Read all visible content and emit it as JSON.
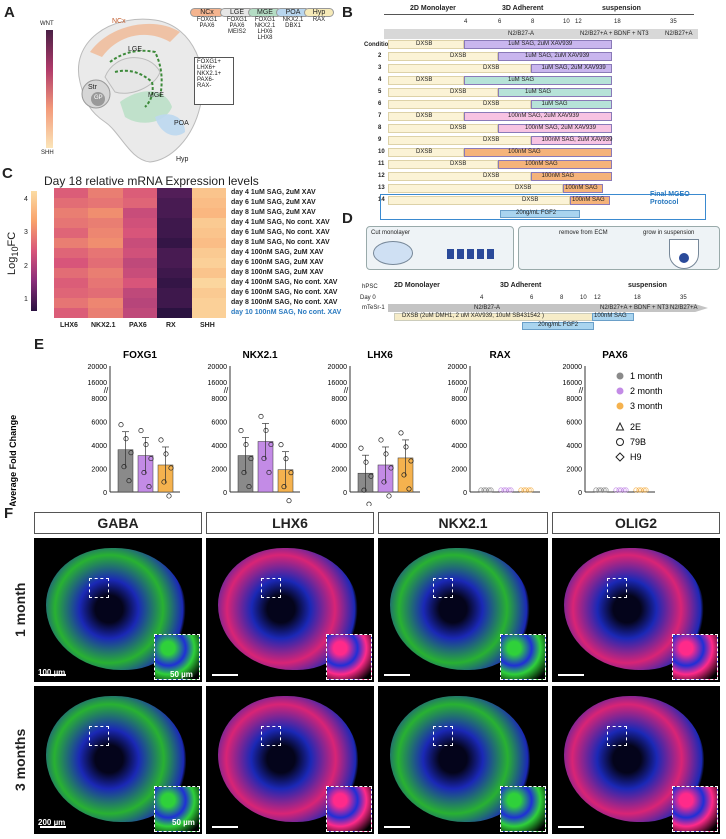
{
  "panel_labels": {
    "a": "A",
    "b": "B",
    "c": "C",
    "d": "D",
    "e": "E",
    "f": "F"
  },
  "colors": {
    "green": "#2fd13a",
    "blue": "#1f2fd6",
    "magenta": "#ff2a8a",
    "lavender": "#b7a5e6",
    "mint": "#a8e0d5",
    "pink": "#f6b8de",
    "orange": "#f0a868",
    "cream": "#fbf3d6",
    "lightblue": "#a9d4ef",
    "gray1": "#7a7a7a",
    "violet": "#c38be6",
    "orange2": "#f5b24e"
  },
  "panel_a": {
    "gradient_top": "WNT",
    "gradient_bottom": "SHH",
    "regions": {
      "ncx": "NCx",
      "lge": "LGE",
      "mge": "MGE",
      "str": "Str",
      "gp": "GP",
      "poa": "POA",
      "hyp": "Hyp"
    },
    "callout": [
      "FOXG1+",
      "LHX6+",
      "NKX2.1+",
      "PAX6-",
      "RAX-"
    ],
    "marker_boxes": [
      {
        "name": "NCx",
        "genes": [
          "FOXG1",
          "PAX6"
        ]
      },
      {
        "name": "LGE",
        "genes": [
          "FOXG1",
          "PAX6",
          "MEIS2"
        ]
      },
      {
        "name": "MGE",
        "genes": [
          "FOXG1",
          "NKX2.1",
          "LHX6",
          "LHX8"
        ]
      },
      {
        "name": "POA",
        "genes": [
          "NKX2.1",
          "DBX1"
        ]
      },
      {
        "name": "Hyp",
        "genes": [
          "RAX"
        ]
      }
    ]
  },
  "panel_b": {
    "phases": [
      "2D Monolayer",
      "3D Adherent",
      "suspension"
    ],
    "days": [
      "4",
      "6",
      "8",
      "10",
      "12",
      "18",
      "35"
    ],
    "media_top": [
      "N2/B27-A",
      "N2/B27+A + BDNF + NT3",
      "N2/B27+A"
    ],
    "condition_label": "Condition 1",
    "dxsb": "DXSB",
    "rows": [
      {
        "n": "1",
        "label": "1uM SAG, 2uM XAV939"
      },
      {
        "n": "2",
        "label": "1uM SAG, 2uM XAV939"
      },
      {
        "n": "3",
        "label": "1uM SAG, 2uM XAV939"
      },
      {
        "n": "4",
        "label": "1uM SAG"
      },
      {
        "n": "5",
        "label": "1uM SAG"
      },
      {
        "n": "6",
        "label": "1uM SAG"
      },
      {
        "n": "7",
        "label": "100nM SAG, 2uM XAV939"
      },
      {
        "n": "8",
        "label": "100nM SAG, 2uM XAV939"
      },
      {
        "n": "9",
        "label": "100nM SAG, 2uM XAV939"
      },
      {
        "n": "10",
        "label": "100nM SAG"
      },
      {
        "n": "11",
        "label": "100nM SAG"
      },
      {
        "n": "12",
        "label": "100nM SAG"
      },
      {
        "n": "13",
        "label": "100nM SAG"
      },
      {
        "n": "14",
        "label": "100nM SAG"
      }
    ],
    "fgf2": "20ng/mL FGF2",
    "final_protocol": [
      "Final MGEO",
      "Protocol"
    ]
  },
  "panel_c": {
    "title": "Day 18 relative mRNA Expression levels",
    "ylabel": "Log10FC",
    "colorbar_ticks": [
      "4",
      "3",
      "2",
      "1"
    ],
    "columns": [
      "LHX6",
      "NKX2.1",
      "PAX6",
      "RX",
      "SHH"
    ],
    "rows": [
      "day 4 1uM SAG, 2uM XAV",
      "day 6 1uM SAG, 2uM XAV",
      "day 8 1uM SAG, 2uM XAV",
      "day 4 1uM SAG, No cont. XAV",
      "day 6 1uM SAG, No cont. XAV",
      "day 8 1uM SAG, No cont. XAV",
      "day 4 100nM SAG, 2uM XAV",
      "day 6 100nM SAG, 2uM XAV",
      "day 8 100nM SAG, 2uM XAV",
      "day 4 100nM SAG, No cont. XAV",
      "day 6 100nM SAG, No cont. XAV",
      "day 8 100nM SAG, No cont. XAV",
      "day 10 100nM  SAG,  No cont.  XAV"
    ]
  },
  "panel_d": {
    "steps": [
      "Cut monolayer",
      "remove from ECM",
      "grow in suspension"
    ],
    "start": "hPSC",
    "day0": "Day 0",
    "phases": [
      "2D Monolayer",
      "3D Adherent",
      "suspension"
    ],
    "days": [
      "4",
      "6",
      "8",
      "10",
      "12",
      "18",
      "35"
    ],
    "media": [
      "mTeSr-1",
      "N2/B27-A",
      "N2/B27+A + BDNF + NT3",
      "N2/B27+A"
    ],
    "dxsb": "DXSB (2uM DMH1, 2 uM XAV939, 10uM SB431542 )",
    "sag": "100nM SAG",
    "fgf2": "20ng/mL FGF2"
  },
  "chart_data": {
    "type": "bar",
    "ylabel": "Average Fold Change",
    "yticks": [
      "0",
      "2000",
      "4000",
      "6000",
      "8000",
      "16000",
      "20000"
    ],
    "legend": {
      "groups": [
        "1 month",
        "2 month",
        "3 month"
      ],
      "lines": [
        "2E",
        "79B",
        "H9"
      ]
    },
    "panels": [
      {
        "title": "FOXG1",
        "series": [
          {
            "name": "1 month",
            "value": 3600
          },
          {
            "name": "2 month",
            "value": 3100
          },
          {
            "name": "3 month",
            "value": 2300
          }
        ]
      },
      {
        "title": "NKX2.1",
        "series": [
          {
            "name": "1 month",
            "value": 3100
          },
          {
            "name": "2 month",
            "value": 4300
          },
          {
            "name": "3 month",
            "value": 1900
          }
        ]
      },
      {
        "title": "LHX6",
        "series": [
          {
            "name": "1 month",
            "value": 1600
          },
          {
            "name": "2 month",
            "value": 2300
          },
          {
            "name": "3 month",
            "value": 2900
          }
        ]
      },
      {
        "title": "RAX",
        "series": [
          {
            "name": "1 month",
            "value": 30
          },
          {
            "name": "2 month",
            "value": 30
          },
          {
            "name": "3 month",
            "value": 30
          }
        ]
      },
      {
        "title": "PAX6",
        "series": [
          {
            "name": "1 month",
            "value": 30
          },
          {
            "name": "2 month",
            "value": 30
          },
          {
            "name": "3 month",
            "value": 30
          }
        ]
      }
    ]
  },
  "panel_f": {
    "columns": [
      "GABA",
      "LHX6",
      "NKX2.1",
      "OLIG2"
    ],
    "rows": [
      "1 month",
      "3 months"
    ],
    "scalebars": {
      "big1": "100 µm",
      "inset1": "50 µm",
      "big2": "200 µm",
      "inset2": "50 µm"
    }
  }
}
